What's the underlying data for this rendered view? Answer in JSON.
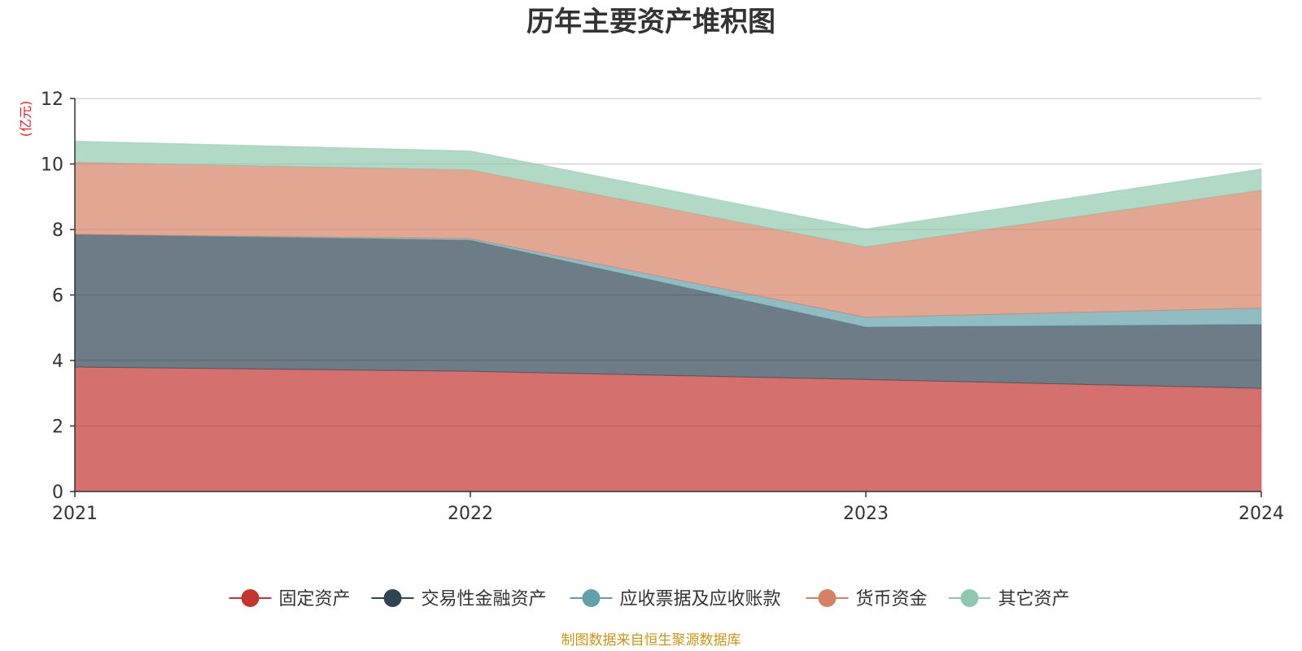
{
  "chart_data": {
    "type": "area",
    "stacked": true,
    "title": "历年主要资产堆积图",
    "unit_label": "(亿元)",
    "x": [
      "2021",
      "2022",
      "2023",
      "2024"
    ],
    "ylim": [
      0,
      12
    ],
    "yticks": [
      0,
      2,
      4,
      6,
      8,
      10,
      12
    ],
    "grid": true,
    "legend_position": "bottom",
    "series": [
      {
        "name": "固定资产",
        "color": "#c23531",
        "values": [
          3.8,
          3.67,
          3.42,
          3.15
        ]
      },
      {
        "name": "交易性金融资产",
        "color": "#2f4554",
        "values": [
          4.05,
          4.0,
          1.6,
          1.95
        ]
      },
      {
        "name": "应收票据及应收账款",
        "color": "#61a0a8",
        "values": [
          0.0,
          0.05,
          0.3,
          0.5
        ]
      },
      {
        "name": "货币资金",
        "color": "#d48265",
        "values": [
          2.2,
          2.1,
          2.15,
          3.6
        ]
      },
      {
        "name": "其它资产",
        "color": "#91c7ae",
        "values": [
          0.65,
          0.58,
          0.55,
          0.65
        ]
      }
    ]
  },
  "source_text": "制图数据来自恒生聚源数据库",
  "colors": {
    "unit_label": "#e02020",
    "source_text": "#c8961e"
  }
}
